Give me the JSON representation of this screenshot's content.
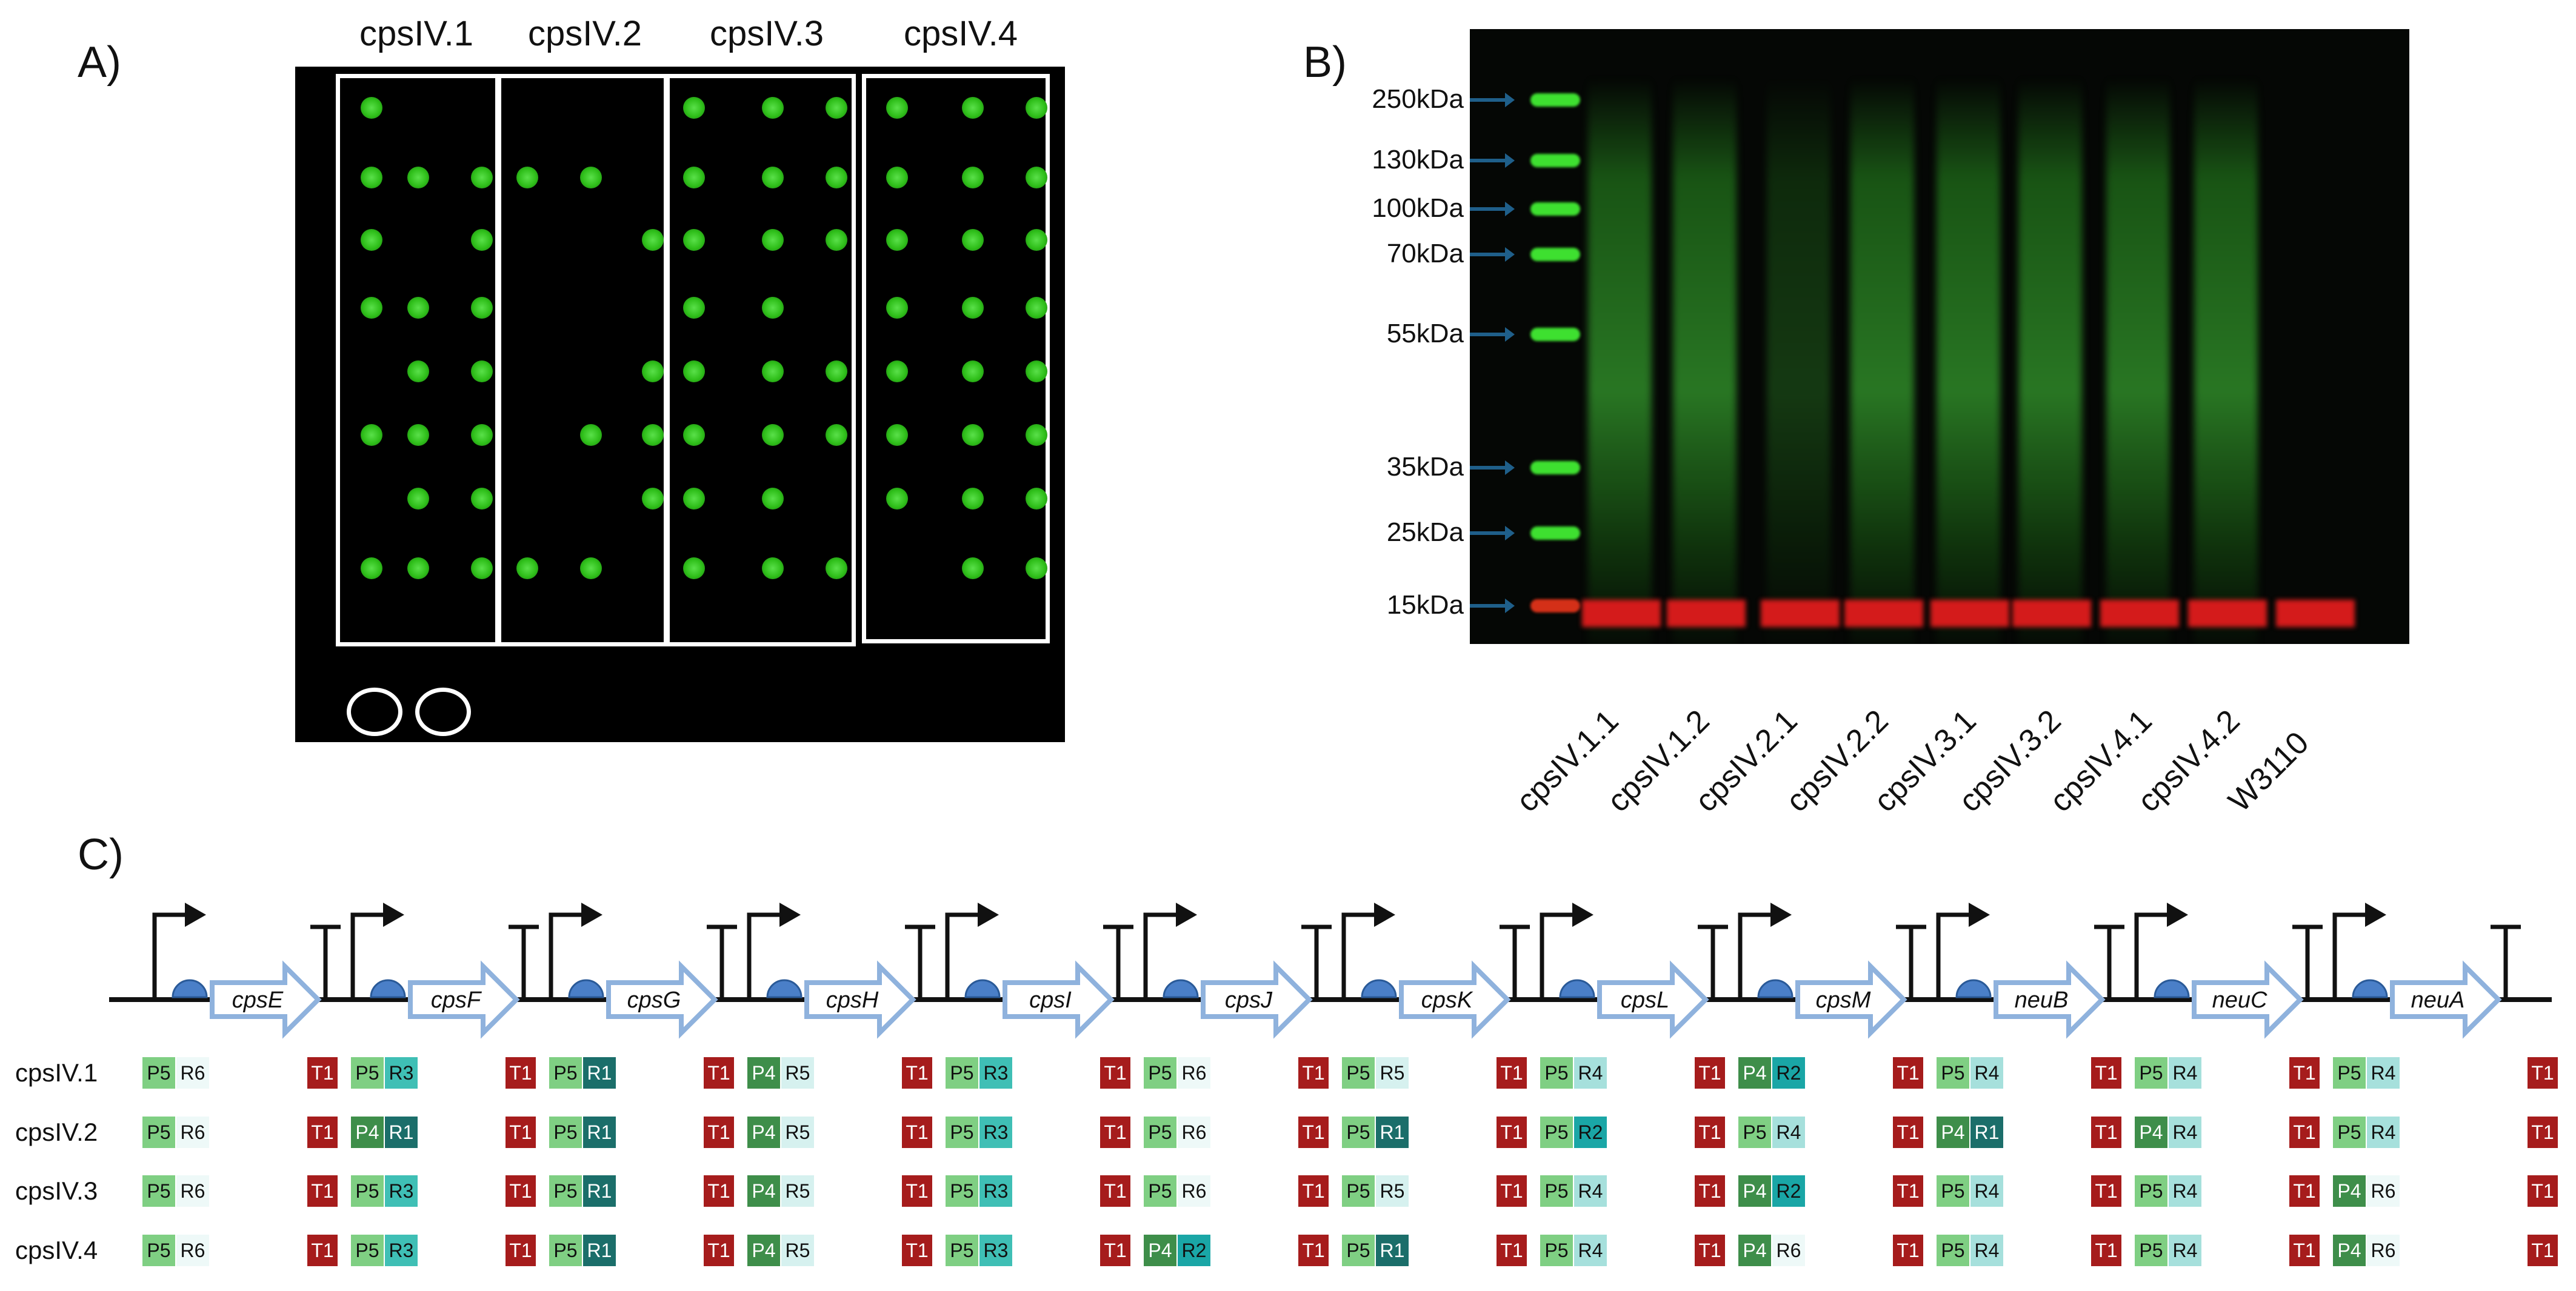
{
  "panel_labels": {
    "a": "A)",
    "b": "B)",
    "c": "C)"
  },
  "plate": {
    "columns": [
      "cpsIV.1",
      "cpsIV.2",
      "cpsIV.3",
      "cpsIV.4"
    ]
  },
  "gel": {
    "markers": [
      "250kDa",
      "130kDa",
      "100kDa",
      "70kDa",
      "55kDa",
      "35kDa",
      "25kDa",
      "15kDa"
    ],
    "lanes": [
      "cpsIV.1.1",
      "cpsIV.1.2",
      "cpsIV.2.1",
      "cpsIV.2.2",
      "cpsIV.3.1",
      "cpsIV.3.2",
      "cpsIV.4.1",
      "cpsIV.4.2",
      "W3110"
    ]
  },
  "construct": {
    "genes": [
      "cpsE",
      "cpsF",
      "cpsG",
      "cpsH",
      "cpsI",
      "cpsJ",
      "cpsK",
      "cpsL",
      "cpsM",
      "neuB",
      "neuC",
      "neuA"
    ],
    "rows": [
      {
        "label": "cpsIV.1",
        "sites": [
          [
            "P5",
            "R6"
          ],
          [
            "T1",
            "P5",
            "R3"
          ],
          [
            "T1",
            "P5",
            "R1"
          ],
          [
            "T1",
            "P4",
            "R5"
          ],
          [
            "T1",
            "P5",
            "R3"
          ],
          [
            "T1",
            "P5",
            "R6"
          ],
          [
            "T1",
            "P5",
            "R5"
          ],
          [
            "T1",
            "P5",
            "R4"
          ],
          [
            "T1",
            "P4",
            "R2"
          ],
          [
            "T1",
            "P5",
            "R4"
          ],
          [
            "T1",
            "P5",
            "R4"
          ],
          [
            "T1",
            "P5",
            "R4"
          ],
          [
            "T1"
          ]
        ]
      },
      {
        "label": "cpsIV.2",
        "sites": [
          [
            "P5",
            "R6"
          ],
          [
            "T1",
            "P4",
            "R1"
          ],
          [
            "T1",
            "P5",
            "R1"
          ],
          [
            "T1",
            "P4",
            "R5"
          ],
          [
            "T1",
            "P5",
            "R3"
          ],
          [
            "T1",
            "P5",
            "R6"
          ],
          [
            "T1",
            "P5",
            "R1"
          ],
          [
            "T1",
            "P5",
            "R2"
          ],
          [
            "T1",
            "P5",
            "R4"
          ],
          [
            "T1",
            "P4",
            "R1"
          ],
          [
            "T1",
            "P4",
            "R4"
          ],
          [
            "T1",
            "P5",
            "R4"
          ],
          [
            "T1"
          ]
        ]
      },
      {
        "label": "cpsIV.3",
        "sites": [
          [
            "P5",
            "R6"
          ],
          [
            "T1",
            "P5",
            "R3"
          ],
          [
            "T1",
            "P5",
            "R1"
          ],
          [
            "T1",
            "P4",
            "R5"
          ],
          [
            "T1",
            "P5",
            "R3"
          ],
          [
            "T1",
            "P5",
            "R6"
          ],
          [
            "T1",
            "P5",
            "R5"
          ],
          [
            "T1",
            "P5",
            "R4"
          ],
          [
            "T1",
            "P4",
            "R2"
          ],
          [
            "T1",
            "P5",
            "R4"
          ],
          [
            "T1",
            "P5",
            "R4"
          ],
          [
            "T1",
            "P4",
            "R6"
          ],
          [
            "T1"
          ]
        ]
      },
      {
        "label": "cpsIV.4",
        "sites": [
          [
            "P5",
            "R6"
          ],
          [
            "T1",
            "P5",
            "R3"
          ],
          [
            "T1",
            "P5",
            "R1"
          ],
          [
            "T1",
            "P4",
            "R5"
          ],
          [
            "T1",
            "P5",
            "R3"
          ],
          [
            "T1",
            "P4",
            "R2"
          ],
          [
            "T1",
            "P5",
            "R1"
          ],
          [
            "T1",
            "P5",
            "R4"
          ],
          [
            "T1",
            "P4",
            "R6"
          ],
          [
            "T1",
            "P5",
            "R4"
          ],
          [
            "T1",
            "P5",
            "R4"
          ],
          [
            "T1",
            "P4",
            "R6"
          ],
          [
            "T1"
          ]
        ]
      }
    ],
    "part_colors": {
      "T1": "#a61c1c",
      "P5": "#7fcf83",
      "P4": "#3e8e4a",
      "R1": "#1b6e6a",
      "R2": "#1aa6a6",
      "R3": "#3fbfb5",
      "R4": "#a6e0dc",
      "R5": "#d6f1ef",
      "R6": "#eef9f8"
    }
  }
}
